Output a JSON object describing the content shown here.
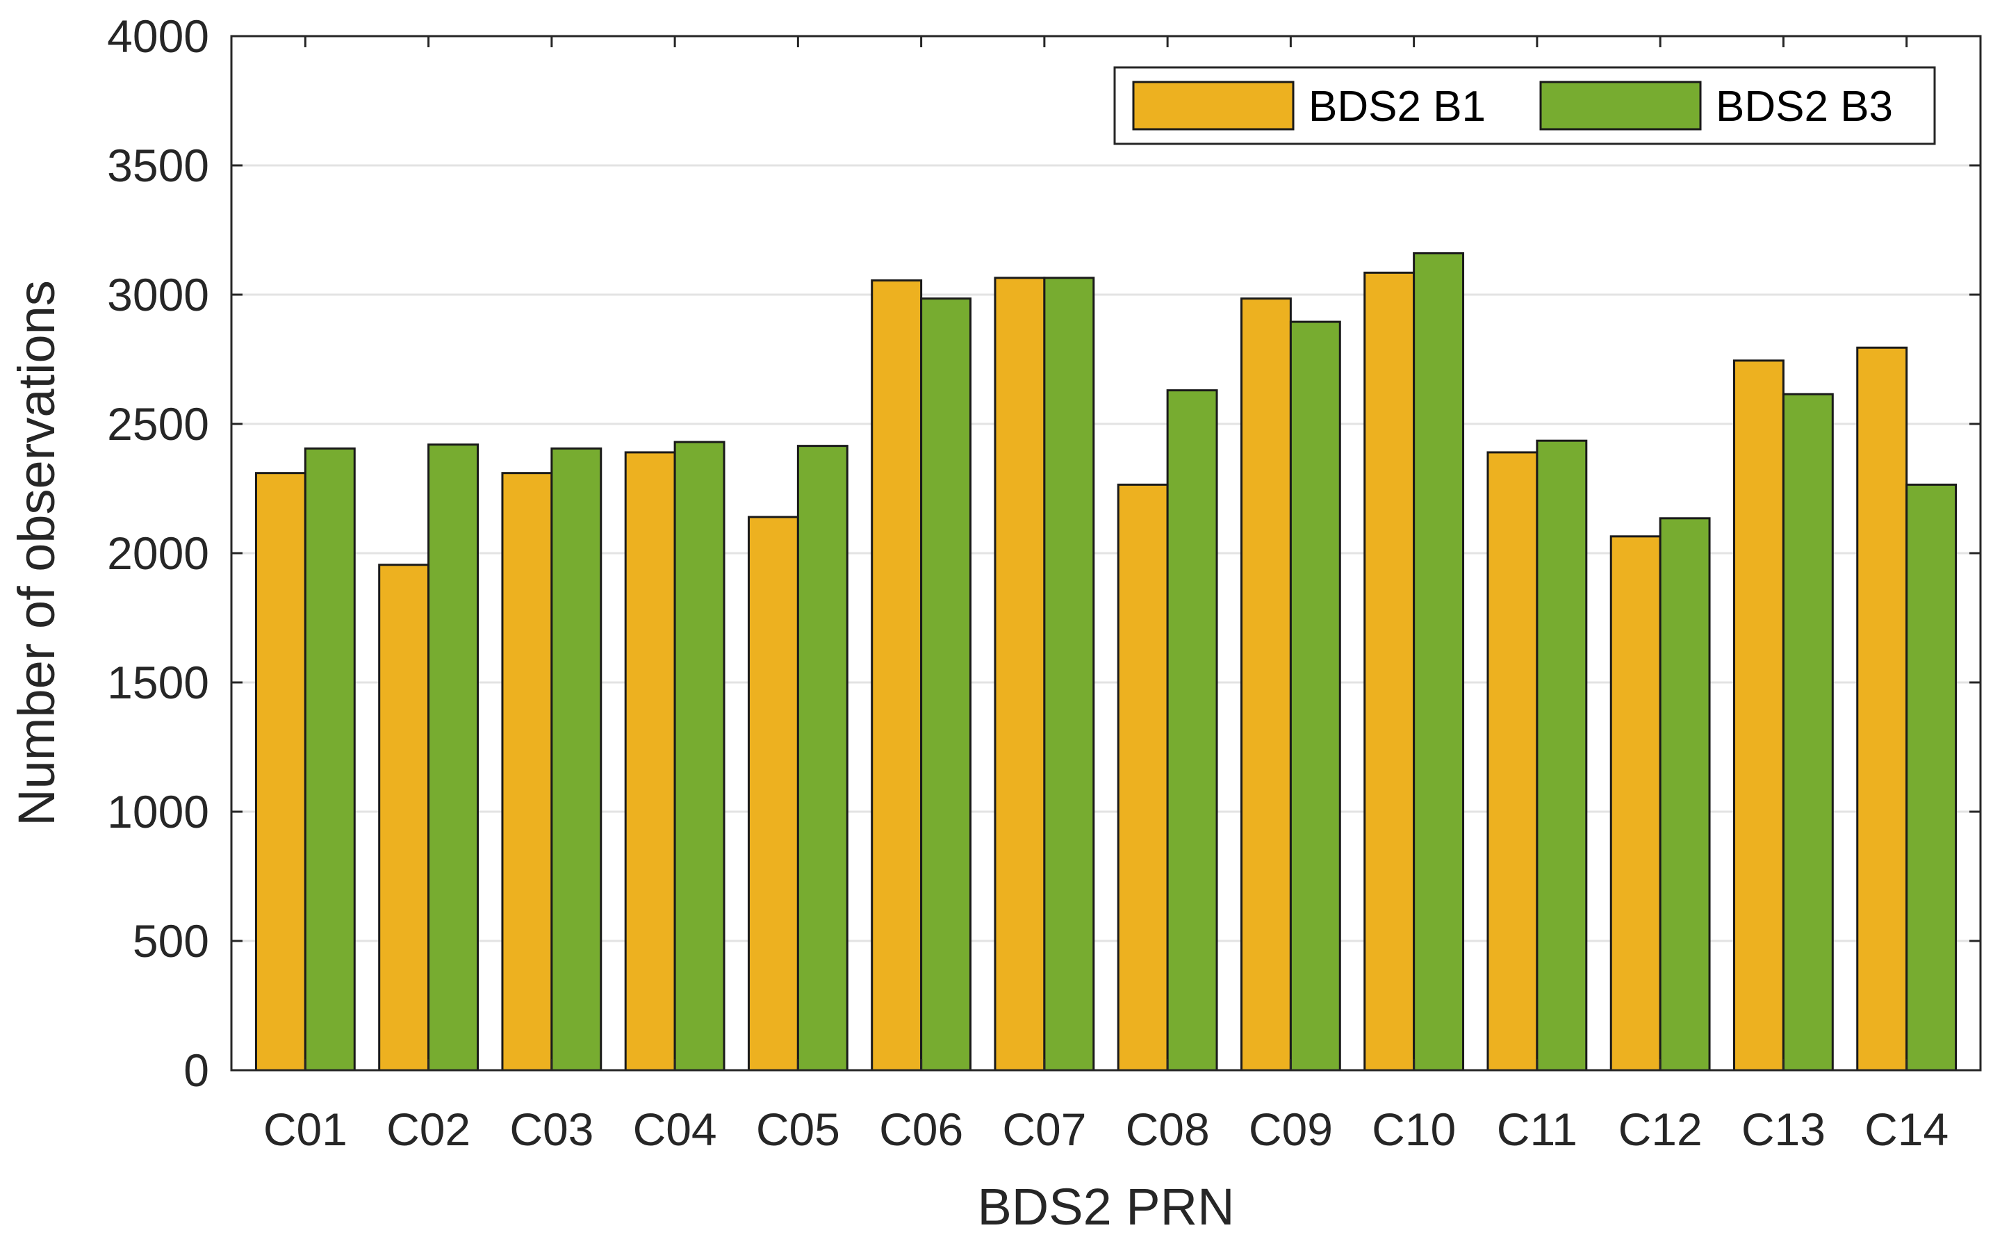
{
  "chart_data": {
    "type": "bar",
    "title": "",
    "xlabel": "BDS2 PRN",
    "ylabel": "Number of observations",
    "categories": [
      "C01",
      "C02",
      "C03",
      "C04",
      "C05",
      "C06",
      "C07",
      "C08",
      "C09",
      "C10",
      "C11",
      "C12",
      "C13",
      "C14"
    ],
    "series": [
      {
        "name": "BDS2 B1",
        "color": "#EDB120",
        "values": [
          2310,
          1955,
          2310,
          2390,
          2140,
          3055,
          3065,
          2265,
          2985,
          3085,
          2390,
          2065,
          2745,
          2795
        ]
      },
      {
        "name": "BDS2 B3",
        "color": "#77AC30",
        "values": [
          2405,
          2420,
          2405,
          2430,
          2415,
          2985,
          3065,
          2630,
          2895,
          3160,
          2435,
          2135,
          2615,
          2265
        ]
      }
    ],
    "ylim": [
      0,
      4000
    ],
    "yticks": [
      0,
      500,
      1000,
      1500,
      2000,
      2500,
      3000,
      3500,
      4000
    ],
    "grid": true,
    "legend_position": "top-right",
    "legend_orientation": "horizontal"
  }
}
